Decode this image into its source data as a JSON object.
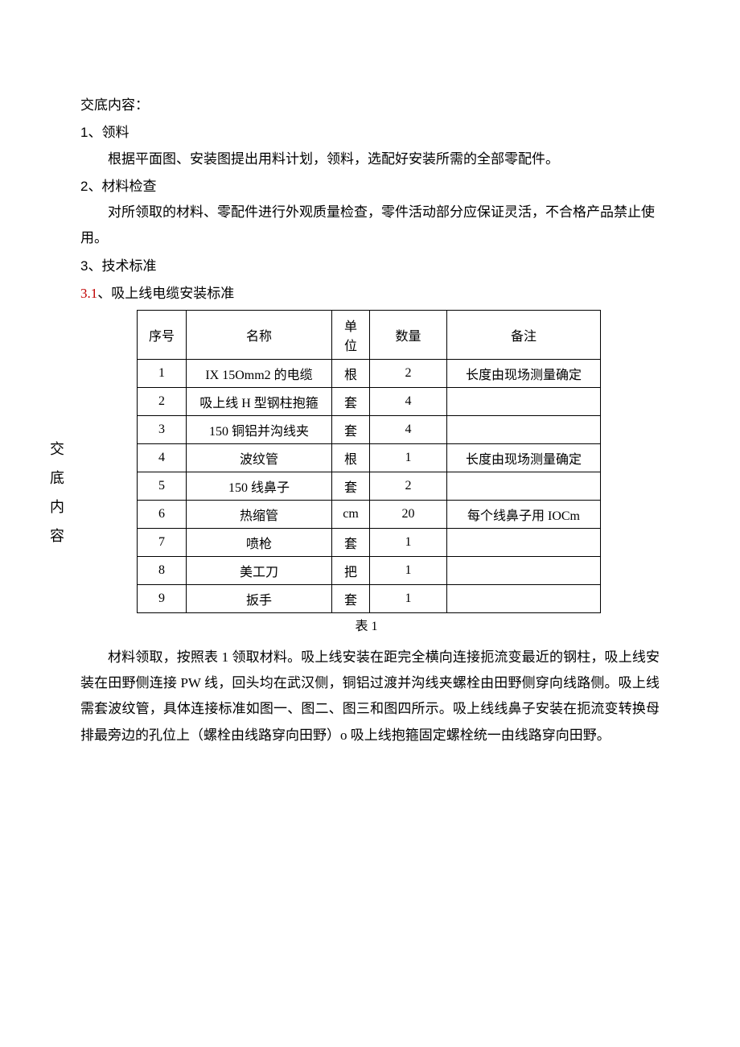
{
  "header": "交底内容：",
  "side_label": [
    "交",
    "底",
    "内",
    "容"
  ],
  "sections": {
    "s1": {
      "num": "1",
      "title": "、领料",
      "body": "根据平面图、安装图提出用料计划，领料，选配好安装所需的全部零配件。"
    },
    "s2": {
      "num": "2",
      "title": "、材料检查",
      "body": "对所领取的材料、零配件进行外观质量检查，零件活动部分应保证灵活，不合格产品禁止使用。"
    },
    "s3": {
      "num": "3",
      "title": "、技术标准"
    },
    "s31": {
      "num": "3.1",
      "title": "、吸上线电缆安装标准"
    }
  },
  "table": {
    "columns": {
      "seq": "序号",
      "name": "名称",
      "unit": "单位",
      "qty": "数量",
      "note": "备注"
    },
    "unit_chars": [
      "单",
      "位"
    ],
    "rows": [
      {
        "seq": "1",
        "name": "IX 15Omm2 的电缆",
        "unit": "根",
        "qty": "2",
        "note": "长度由现场测量确定"
      },
      {
        "seq": "2",
        "name": "吸上线 H 型钢柱抱箍",
        "unit": "套",
        "qty": "4",
        "note": ""
      },
      {
        "seq": "3",
        "name": "150 铜铝并沟线夹",
        "unit": "套",
        "qty": "4",
        "note": ""
      },
      {
        "seq": "4",
        "name": "波纹管",
        "unit": "根",
        "qty": "1",
        "note": "长度由现场测量确定"
      },
      {
        "seq": "5",
        "name": "150 线鼻子",
        "unit": "套",
        "qty": "2",
        "note": ""
      },
      {
        "seq": "6",
        "name": "热缩管",
        "unit": "cm",
        "qty": "20",
        "note": "每个线鼻子用 IOCm"
      },
      {
        "seq": "7",
        "name": "喷枪",
        "unit": "套",
        "qty": "1",
        "note": ""
      },
      {
        "seq": "8",
        "name": "美工刀",
        "unit": "把",
        "qty": "1",
        "note": ""
      },
      {
        "seq": "9",
        "name": "扳手",
        "unit": "套",
        "qty": "1",
        "note": ""
      }
    ],
    "caption": "表 1"
  },
  "body_para": "材料领取，按照表 1 领取材料。吸上线安装在距完全横向连接扼流变最近的钢柱，吸上线安装在田野侧连接 PW 线，回头均在武汉侧，铜铝过渡并沟线夹螺栓由田野侧穿向线路侧。吸上线需套波纹管，具体连接标准如图一、图二、图三和图四所示。吸上线线鼻子安装在扼流变转换母排最旁边的孔位上（螺栓由线路穿向田野）o 吸上线抱箍固定螺栓统一由线路穿向田野。"
}
